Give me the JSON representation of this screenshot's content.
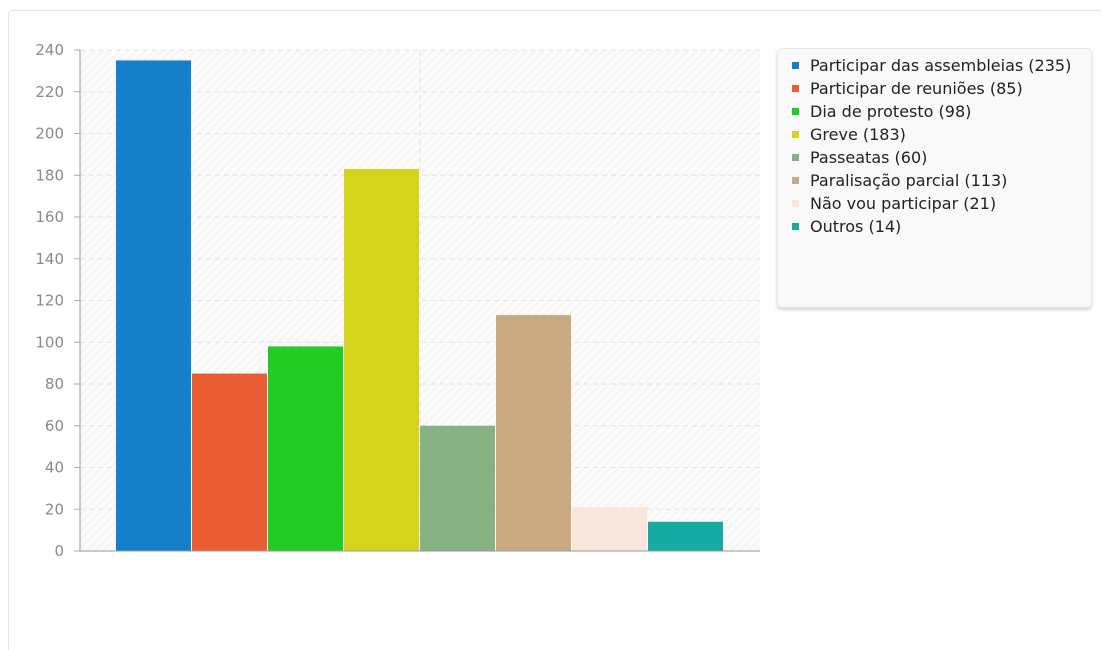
{
  "chart_data": {
    "type": "bar",
    "categories": [
      "Participar das assembleias",
      "Participar de reuniões",
      "Dia de protesto",
      "Greve",
      "Passeatas",
      "Paralisação parcial",
      "Não vou participar",
      "Outros"
    ],
    "values": [
      235,
      85,
      98,
      183,
      60,
      113,
      21,
      14
    ],
    "colors": [
      "#1580c9",
      "#e85e32",
      "#22cc22",
      "#d4d41c",
      "#86b283",
      "#c8a982",
      "#f9e6dc",
      "#17aaa4"
    ],
    "ylim": [
      0,
      240
    ],
    "yticks": [
      "0",
      "20",
      "40",
      "60",
      "80",
      "100",
      "120",
      "140",
      "160",
      "180",
      "200",
      "220",
      "240"
    ],
    "grid": true,
    "legend_position": "right",
    "legend": [
      "Participar das assembleias (235)",
      "Participar de reuniões (85)",
      "Dia de protesto (98)",
      "Greve (183)",
      "Passeatas (60)",
      "Paralisação parcial (113)",
      "Não vou participar (21)",
      "Outros (14)"
    ]
  }
}
